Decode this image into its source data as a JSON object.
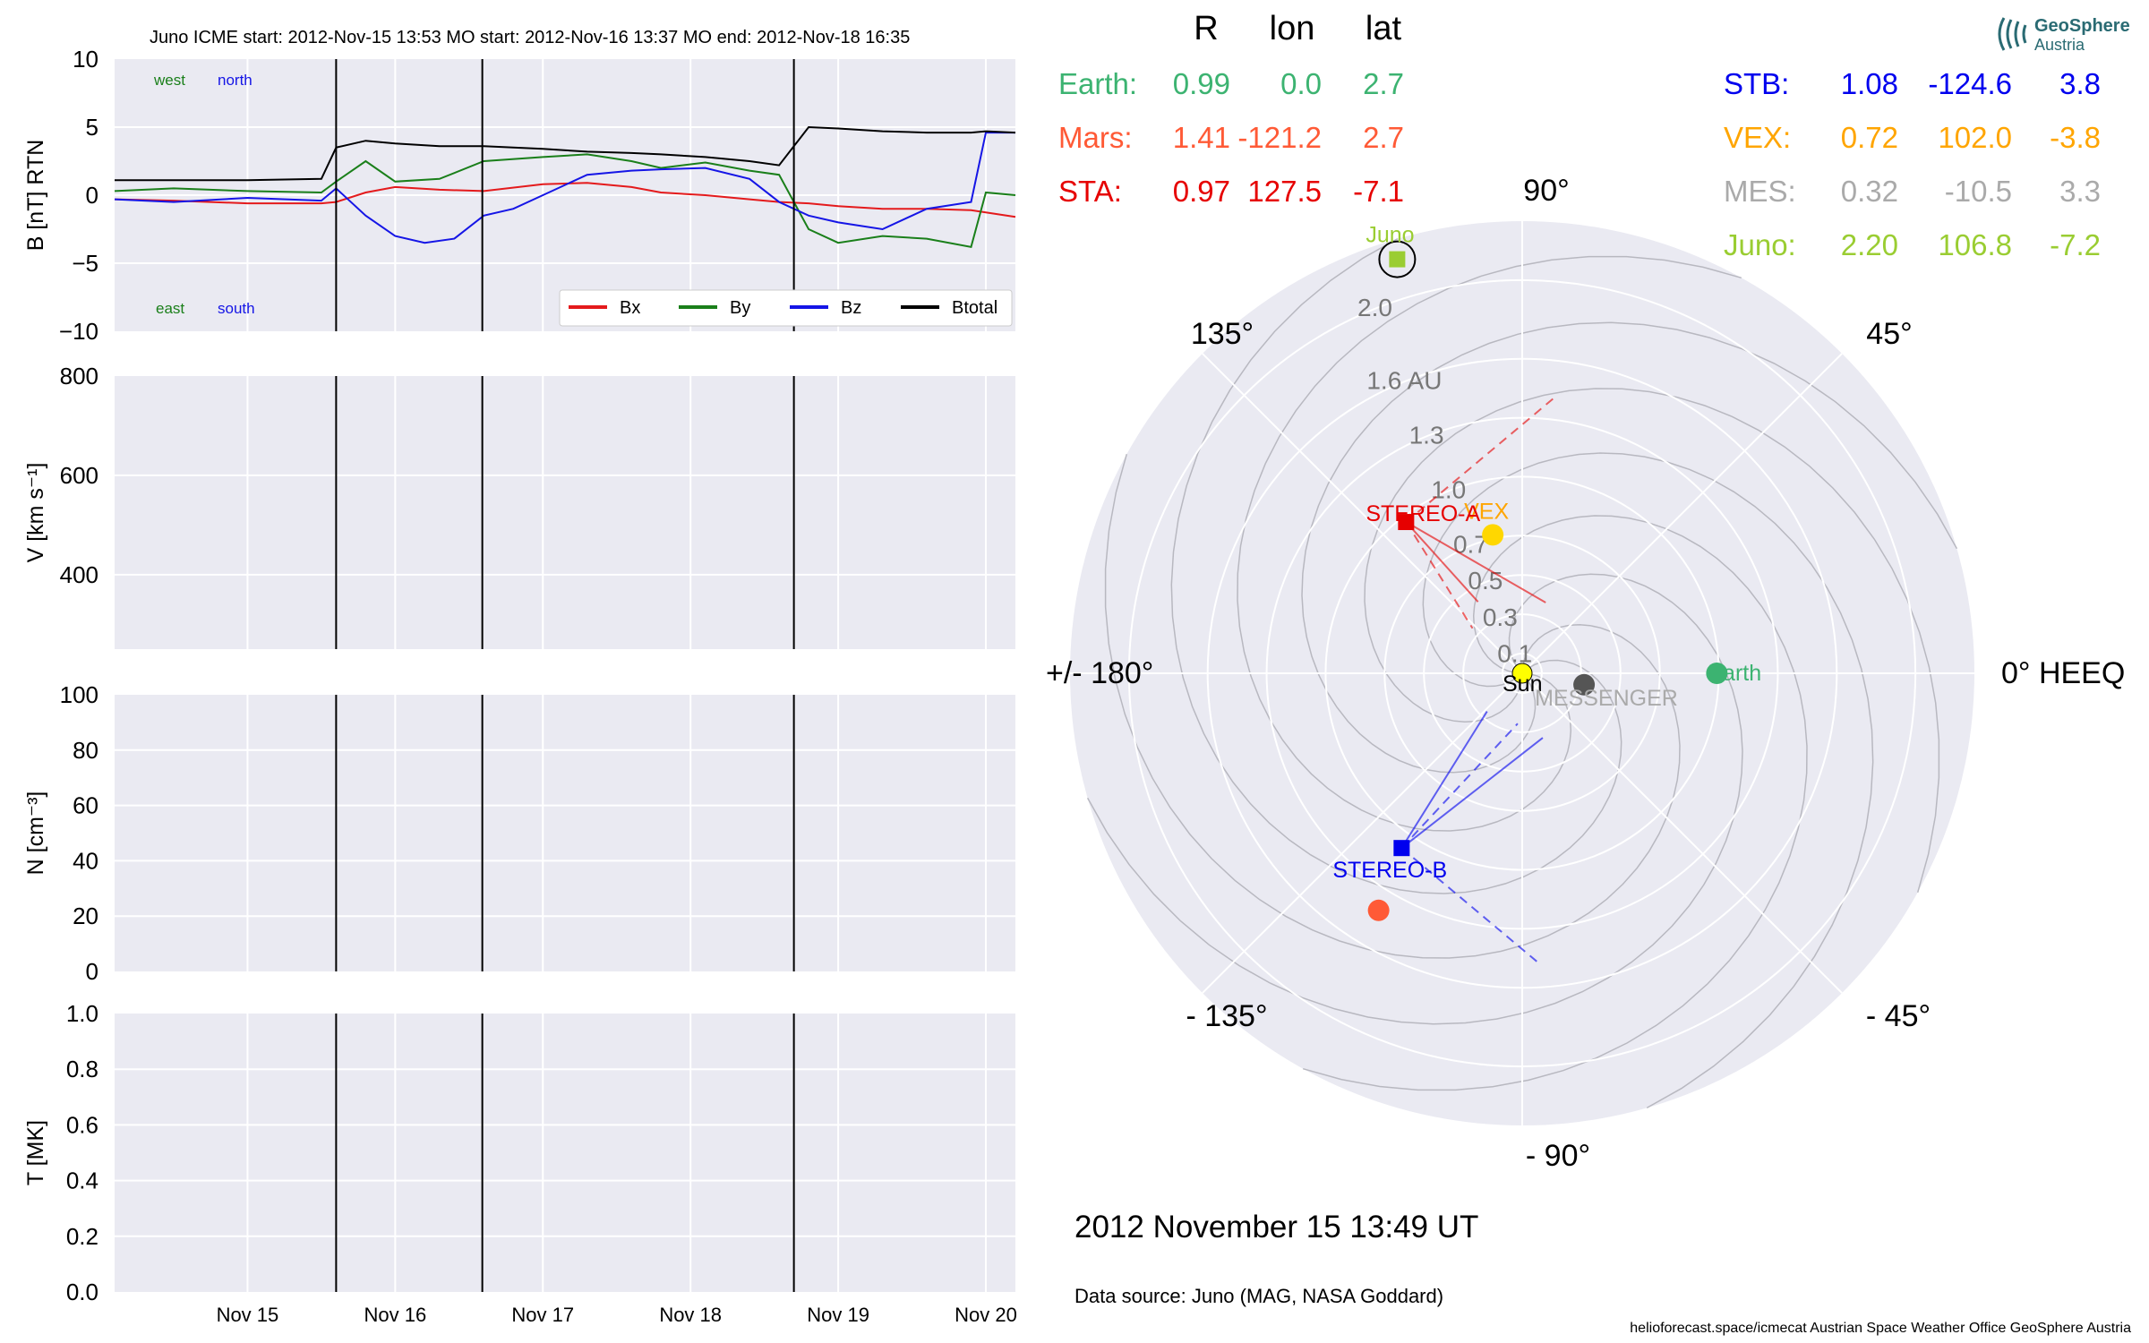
{
  "colors": {
    "bx": "#e41a1c",
    "by": "#1a7f1a",
    "bz": "#1515e6",
    "bt": "#000000",
    "earth": "#3cb371",
    "mars": "#ff5a36",
    "sta": "#e60000",
    "stb": "#0000ee",
    "vex": "#ffa500",
    "mes": "#aaaaaa",
    "juno": "#9acd32",
    "panel_bg": "#eaeaf2"
  },
  "header": {
    "text": "Juno    ICME start: 2012-Nov-15 13:53   MO start: 2012-Nov-16 13:37   MO end: 2012-Nov-18 16:35"
  },
  "panel_b": {
    "west": "west",
    "north": "north",
    "east": "east",
    "south": "south"
  },
  "chart_data": [
    {
      "type": "line",
      "ylabel": "B [nT] RTN",
      "ylim": [
        -10,
        10
      ],
      "yticks": [
        10,
        5,
        0,
        -5,
        -10
      ],
      "ytick_labels": [
        "10",
        "5",
        "0",
        "−5",
        "−10"
      ],
      "xlim_days": [
        "Nov 14.1",
        "Nov 20.2"
      ],
      "legend": [
        "Bx",
        "By",
        "Bz",
        "Btotal"
      ],
      "legend_placement": "lower-right",
      "series": [
        {
          "name": "Bx",
          "x": [
            14.1,
            14.5,
            15.0,
            15.5,
            15.6,
            15.8,
            16.0,
            16.3,
            16.6,
            17.0,
            17.3,
            17.6,
            17.8,
            18.1,
            18.4,
            18.6,
            18.8,
            19.0,
            19.3,
            19.6,
            19.9,
            20.2
          ],
          "y": [
            -0.3,
            -0.4,
            -0.6,
            -0.6,
            -0.5,
            0.2,
            0.6,
            0.4,
            0.3,
            0.8,
            0.9,
            0.6,
            0.2,
            0.0,
            -0.3,
            -0.5,
            -0.6,
            -0.8,
            -1.0,
            -1.0,
            -1.1,
            -1.6
          ]
        },
        {
          "name": "By",
          "x": [
            14.1,
            14.5,
            15.0,
            15.5,
            15.6,
            15.8,
            16.0,
            16.3,
            16.6,
            17.0,
            17.3,
            17.6,
            17.8,
            18.1,
            18.4,
            18.6,
            18.8,
            19.0,
            19.3,
            19.6,
            19.9,
            20.0,
            20.2
          ],
          "y": [
            0.3,
            0.5,
            0.3,
            0.2,
            1.0,
            2.5,
            1.0,
            1.2,
            2.5,
            2.8,
            3.0,
            2.5,
            2.0,
            2.4,
            1.8,
            1.5,
            -2.5,
            -3.5,
            -3.0,
            -3.2,
            -3.8,
            0.2,
            0.0
          ]
        },
        {
          "name": "Bz",
          "x": [
            14.1,
            14.5,
            15.0,
            15.5,
            15.6,
            15.8,
            16.0,
            16.2,
            16.4,
            16.6,
            16.8,
            17.0,
            17.3,
            17.6,
            17.8,
            18.1,
            18.4,
            18.6,
            18.8,
            19.0,
            19.3,
            19.6,
            19.9,
            20.0,
            20.2
          ],
          "y": [
            -0.3,
            -0.5,
            -0.2,
            -0.4,
            0.5,
            -1.5,
            -3.0,
            -3.5,
            -3.2,
            -1.5,
            -1.0,
            0.0,
            1.5,
            1.8,
            1.9,
            2.0,
            1.2,
            -0.5,
            -1.5,
            -2.0,
            -2.5,
            -1.0,
            -0.5,
            4.6,
            4.6
          ]
        },
        {
          "name": "Btotal",
          "x": [
            14.1,
            14.5,
            15.0,
            15.5,
            15.6,
            15.8,
            16.0,
            16.3,
            16.6,
            17.0,
            17.3,
            17.6,
            17.8,
            18.1,
            18.4,
            18.6,
            18.8,
            19.0,
            19.3,
            19.6,
            19.9,
            20.0,
            20.2
          ],
          "y": [
            1.1,
            1.1,
            1.1,
            1.2,
            3.5,
            4.0,
            3.8,
            3.6,
            3.6,
            3.4,
            3.2,
            3.1,
            3.0,
            2.8,
            2.5,
            2.2,
            5.0,
            4.9,
            4.7,
            4.6,
            4.6,
            4.7,
            4.6
          ]
        }
      ]
    },
    {
      "type": "line",
      "ylabel": "V [km s⁻¹]",
      "ylim": [
        250,
        800
      ],
      "yticks": [
        800,
        600,
        400
      ],
      "ytick_labels": [
        "800",
        "600",
        "400"
      ],
      "series": []
    },
    {
      "type": "line",
      "ylabel": "N [cm⁻³]",
      "ylim": [
        0,
        100
      ],
      "yticks": [
        100,
        80,
        60,
        40,
        20,
        0
      ],
      "ytick_labels": [
        "100",
        "80",
        "60",
        "40",
        "20",
        "0"
      ],
      "series": []
    },
    {
      "type": "line",
      "ylabel": "T [MK]",
      "ylim": [
        0,
        1
      ],
      "yticks": [
        1.0,
        0.8,
        0.6,
        0.4,
        0.2,
        0.0
      ],
      "ytick_labels": [
        "1.0",
        "0.8",
        "0.6",
        "0.4",
        "0.2",
        "0.0"
      ],
      "xticks": [
        "Nov 15",
        "Nov 16",
        "Nov 17",
        "Nov 18",
        "Nov 19",
        "Nov 20"
      ],
      "series": []
    },
    {
      "type": "scatter",
      "polar": true,
      "angle_labels": [
        "90°",
        "45°",
        "0° HEEQ",
        "- 45°",
        "- 90°",
        "- 135°",
        "+/- 180°",
        "135°"
      ],
      "radial_labels": [
        "0.1",
        "0.3",
        "0.5",
        "0.7",
        "1.0",
        "1.3",
        "1.6 AU",
        "2.0"
      ],
      "radial_values": [
        0.1,
        0.3,
        0.5,
        0.7,
        1.0,
        1.3,
        1.6,
        2.0
      ],
      "rmax": 2.3,
      "bodies": [
        {
          "name": "Sun",
          "r": 0.0,
          "lon": 0.0
        },
        {
          "name": "Earth",
          "r": 0.99,
          "lon": 0.0
        },
        {
          "name": "MESSENGER",
          "r": 0.32,
          "lon": -10.5
        },
        {
          "name": "VEX",
          "r": 0.72,
          "lon": 102.0
        },
        {
          "name": "STEREO-A",
          "r": 0.97,
          "lon": 127.5
        },
        {
          "name": "STEREO-B",
          "r": 1.08,
          "lon": -124.6
        },
        {
          "name": "Juno",
          "r": 2.2,
          "lon": 106.8
        },
        {
          "name": "Mars",
          "r": 1.41,
          "lon": -121.2
        }
      ]
    }
  ],
  "positions_table": {
    "headers": [
      "R",
      "lon",
      "lat"
    ],
    "left": [
      {
        "label": "Earth:",
        "r": "0.99",
        "lon": "0.0",
        "lat": "2.7",
        "color": "#3cb371"
      },
      {
        "label": "Mars:",
        "r": "1.41",
        "lon": "-121.2",
        "lat": "2.7",
        "color": "#ff5a36"
      },
      {
        "label": "STA:",
        "r": "0.97",
        "lon": "127.5",
        "lat": "-7.1",
        "color": "#e60000"
      }
    ],
    "right": [
      {
        "label": "STB:",
        "r": "1.08",
        "lon": "-124.6",
        "lat": "3.8",
        "color": "#0000ee"
      },
      {
        "label": "VEX:",
        "r": "0.72",
        "lon": "102.0",
        "lat": "-3.8",
        "color": "#ffa500"
      },
      {
        "label": "MES:",
        "r": "0.32",
        "lon": "-10.5",
        "lat": "3.3",
        "color": "#aaaaaa"
      },
      {
        "label": "Juno:",
        "r": "2.20",
        "lon": "106.8",
        "lat": "-7.2",
        "color": "#9acd32"
      }
    ]
  },
  "footer": {
    "date": "2012 November 15  13:49 UT",
    "source": "Data source: Juno (MAG, NASA Goddard)",
    "credits": "helioforecast.space/icmecat   Austrian Space Weather Office   GeoSphere Austria"
  },
  "logo": {
    "line1": "GeoSphere",
    "line2": "Austria",
    "icon": "geosphere-logo-icon"
  }
}
